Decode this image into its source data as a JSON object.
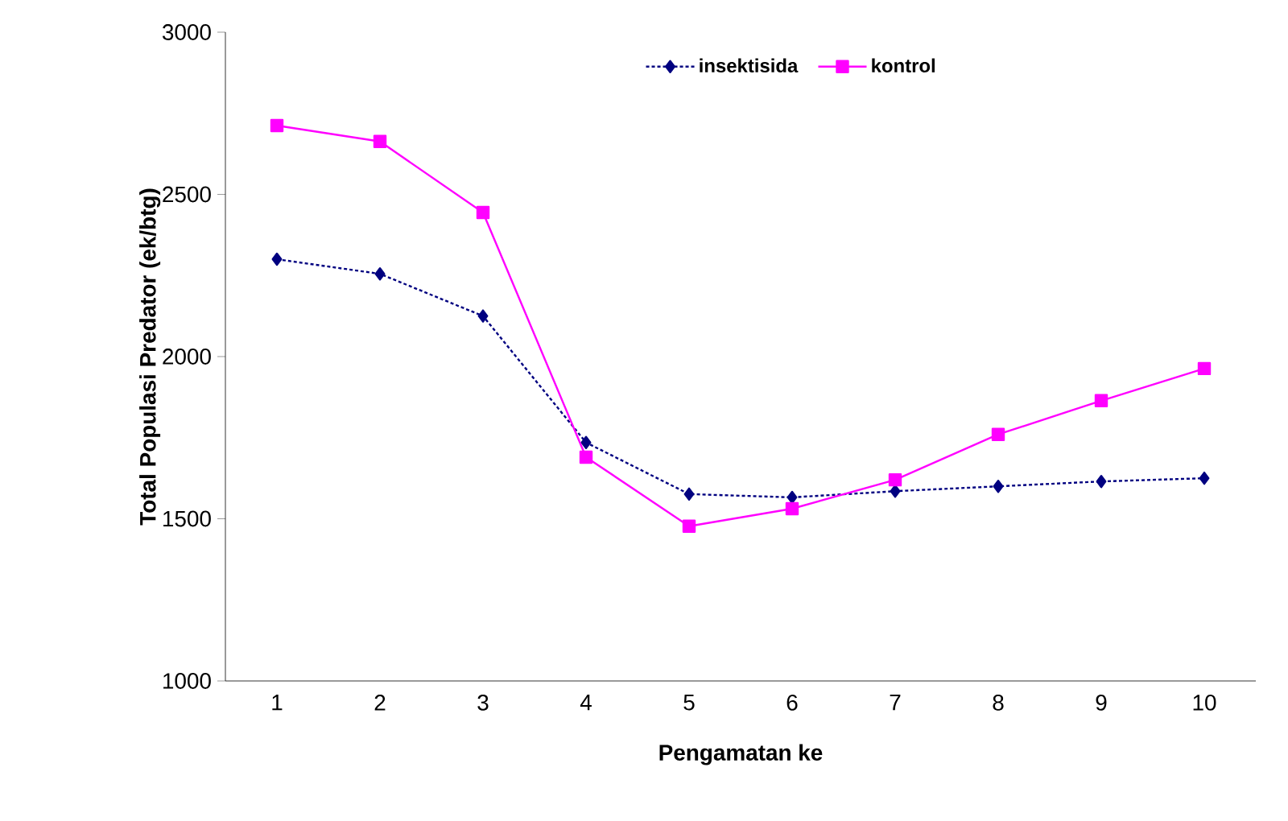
{
  "chart_data": {
    "type": "line",
    "xlabel": "Pengamatan ke",
    "ylabel": "Total Populasi Predator (ek/btg)",
    "categories": [
      "1",
      "2",
      "3",
      "4",
      "5",
      "6",
      "7",
      "8",
      "9",
      "10"
    ],
    "ylim": [
      1000,
      3000
    ],
    "yticks": [
      1000,
      1500,
      2000,
      2500,
      3000
    ],
    "grid": false,
    "legend": "top",
    "series": [
      {
        "name": "insektisida",
        "color": "#000080",
        "marker": "diamond",
        "line_style": "dotted",
        "values": [
          2300,
          2255,
          2125,
          1735,
          1576,
          1566,
          1585,
          1600,
          1615,
          1625
        ]
      },
      {
        "name": "kontrol",
        "color": "#ff00ff",
        "marker": "square",
        "line_style": "solid",
        "values": [
          2712,
          2663,
          2444,
          1690,
          1477,
          1531,
          1620,
          1760,
          1864,
          1963
        ]
      }
    ]
  }
}
